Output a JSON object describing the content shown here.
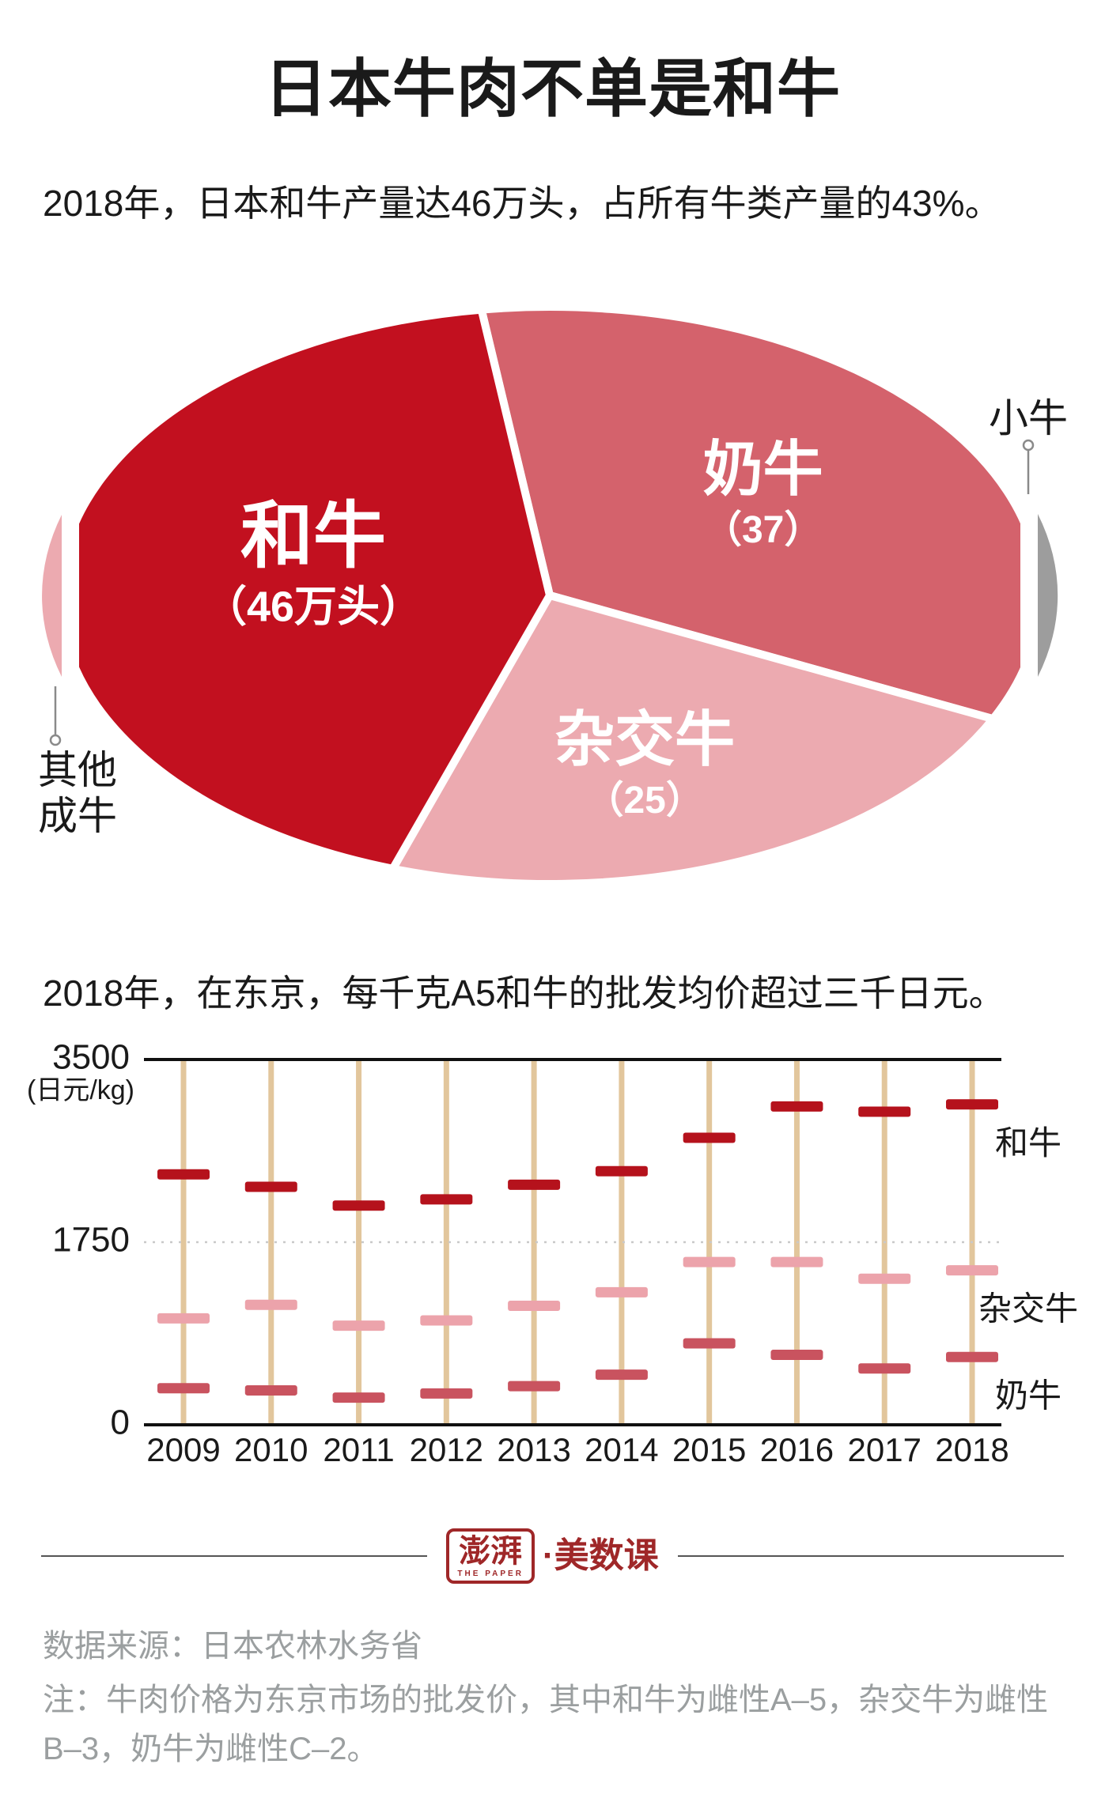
{
  "page": {
    "title": "日本牛肉不单是和牛"
  },
  "chart_data": [
    {
      "type": "pie",
      "title": "2018年，日本和牛产量达46万头，占所有牛类产量的43%。",
      "unit": "万头",
      "slices": [
        {
          "label": "奶牛",
          "sublabel": "（37）",
          "value": 37,
          "color": "#d4626c"
        },
        {
          "label": "杂交牛",
          "sublabel": "（25）",
          "value": 25,
          "color": "#ecaab0"
        },
        {
          "label": "和牛",
          "sublabel": "（46万头）",
          "value": 46,
          "color": "#c2101f"
        }
      ],
      "callouts": [
        {
          "label": "小牛",
          "side": "right",
          "color": "#9d9d9d"
        },
        {
          "label": "其他成牛",
          "label_lines": [
            "其他",
            "成牛"
          ],
          "side": "left",
          "color": "#ecaab0"
        }
      ],
      "legend_position": "inside"
    },
    {
      "type": "scatter",
      "title": "2018年，在东京，每千克A5和牛的批发均价超过三千日元。",
      "x": [
        2009,
        2010,
        2011,
        2012,
        2013,
        2014,
        2015,
        2016,
        2017,
        2018
      ],
      "series": [
        {
          "name": "和牛",
          "color": "#b5121c",
          "values": [
            2400,
            2280,
            2100,
            2160,
            2300,
            2430,
            2750,
            3050,
            3000,
            3070
          ]
        },
        {
          "name": "杂交牛",
          "color": "#eca3ab",
          "values": [
            1020,
            1150,
            950,
            1000,
            1140,
            1270,
            1560,
            1560,
            1400,
            1480
          ]
        },
        {
          "name": "奶牛",
          "color": "#c9535f",
          "values": [
            350,
            330,
            260,
            300,
            370,
            480,
            780,
            670,
            540,
            650
          ]
        }
      ],
      "xlabel": "",
      "ylabel": "(日元/kg)",
      "ylim": [
        0,
        3500
      ],
      "yticks": [
        3500,
        1750,
        0
      ],
      "grid_y": 1750,
      "grid_style": "dashed",
      "stem_color": "#e2c69c",
      "legend_position": "right"
    }
  ],
  "footer": {
    "logo_main": "澎湃",
    "logo_sub": "THE PAPER",
    "logo_suffix": "·美数课",
    "source": "数据来源：日本农林水务省",
    "note": "注：牛肉价格为东京市场的批发价，其中和牛为雌性A–5，杂交牛为雌性B–3，奶牛为雌性C–2。"
  }
}
